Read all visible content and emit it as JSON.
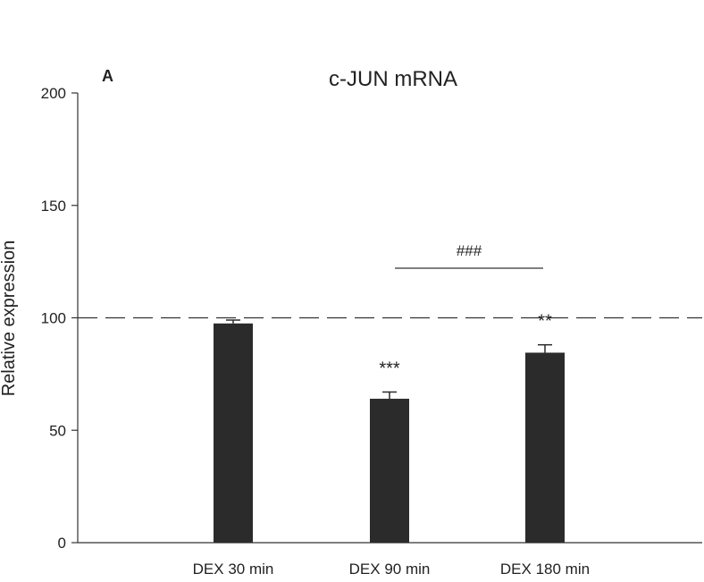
{
  "panel_label": "A",
  "chart_data": {
    "type": "bar",
    "title": "c-JUN mRNA",
    "xlabel": "",
    "ylabel": "Relative expression",
    "categories": [
      "DEX 30 min",
      "DEX 90 min",
      "DEX 180 min"
    ],
    "values": [
      97.5,
      64,
      84.5
    ],
    "errors": [
      1.5,
      3,
      3.5
    ],
    "ylim": [
      0,
      200
    ],
    "yticks": [
      0,
      50,
      100,
      150,
      200
    ],
    "reference_line": 100,
    "grid": false,
    "bar_color": "#2b2b2b",
    "significance": [
      {
        "category_index": 1,
        "label": "***"
      },
      {
        "category_index": 2,
        "label": "**"
      }
    ],
    "bracket": {
      "from_index": 1,
      "to_index": 2,
      "label": "###"
    }
  }
}
